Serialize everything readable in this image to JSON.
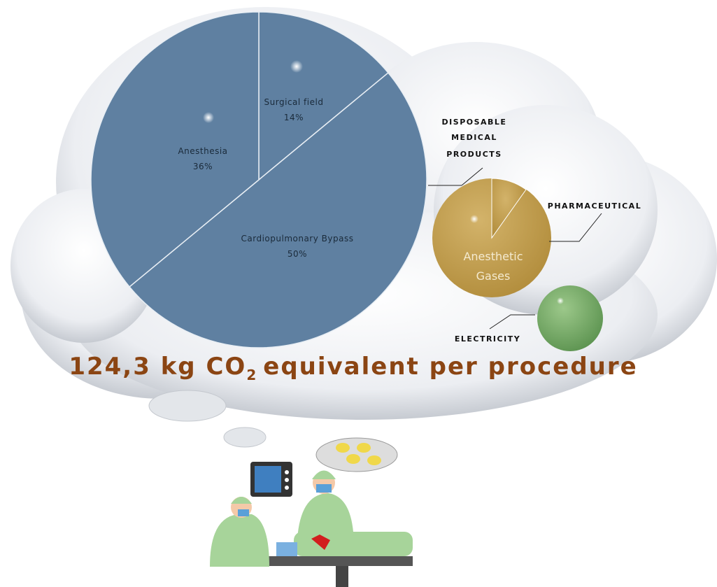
{
  "pie": {
    "slices": [
      {
        "label": "Surgical field",
        "value": 14,
        "value_label": "14%"
      },
      {
        "label": "Cardiopulmonary Bypass",
        "value": 50,
        "value_label": "50%"
      },
      {
        "label": "Anesthesia",
        "value": 36,
        "value_label": "36%"
      }
    ],
    "title": [
      "DISPOSABLE",
      "MEDICAL",
      "PRODUCTS"
    ]
  },
  "pharmaceutical": {
    "title": "PHARMACEUTICAL",
    "label": [
      "Anesthetic",
      "Gases"
    ]
  },
  "electricity": {
    "title": "ELECTRICITY"
  },
  "headline": {
    "prefix": "124,3 kg CO",
    "subscript": "2",
    "suffix": "equivalent per procedure"
  }
}
